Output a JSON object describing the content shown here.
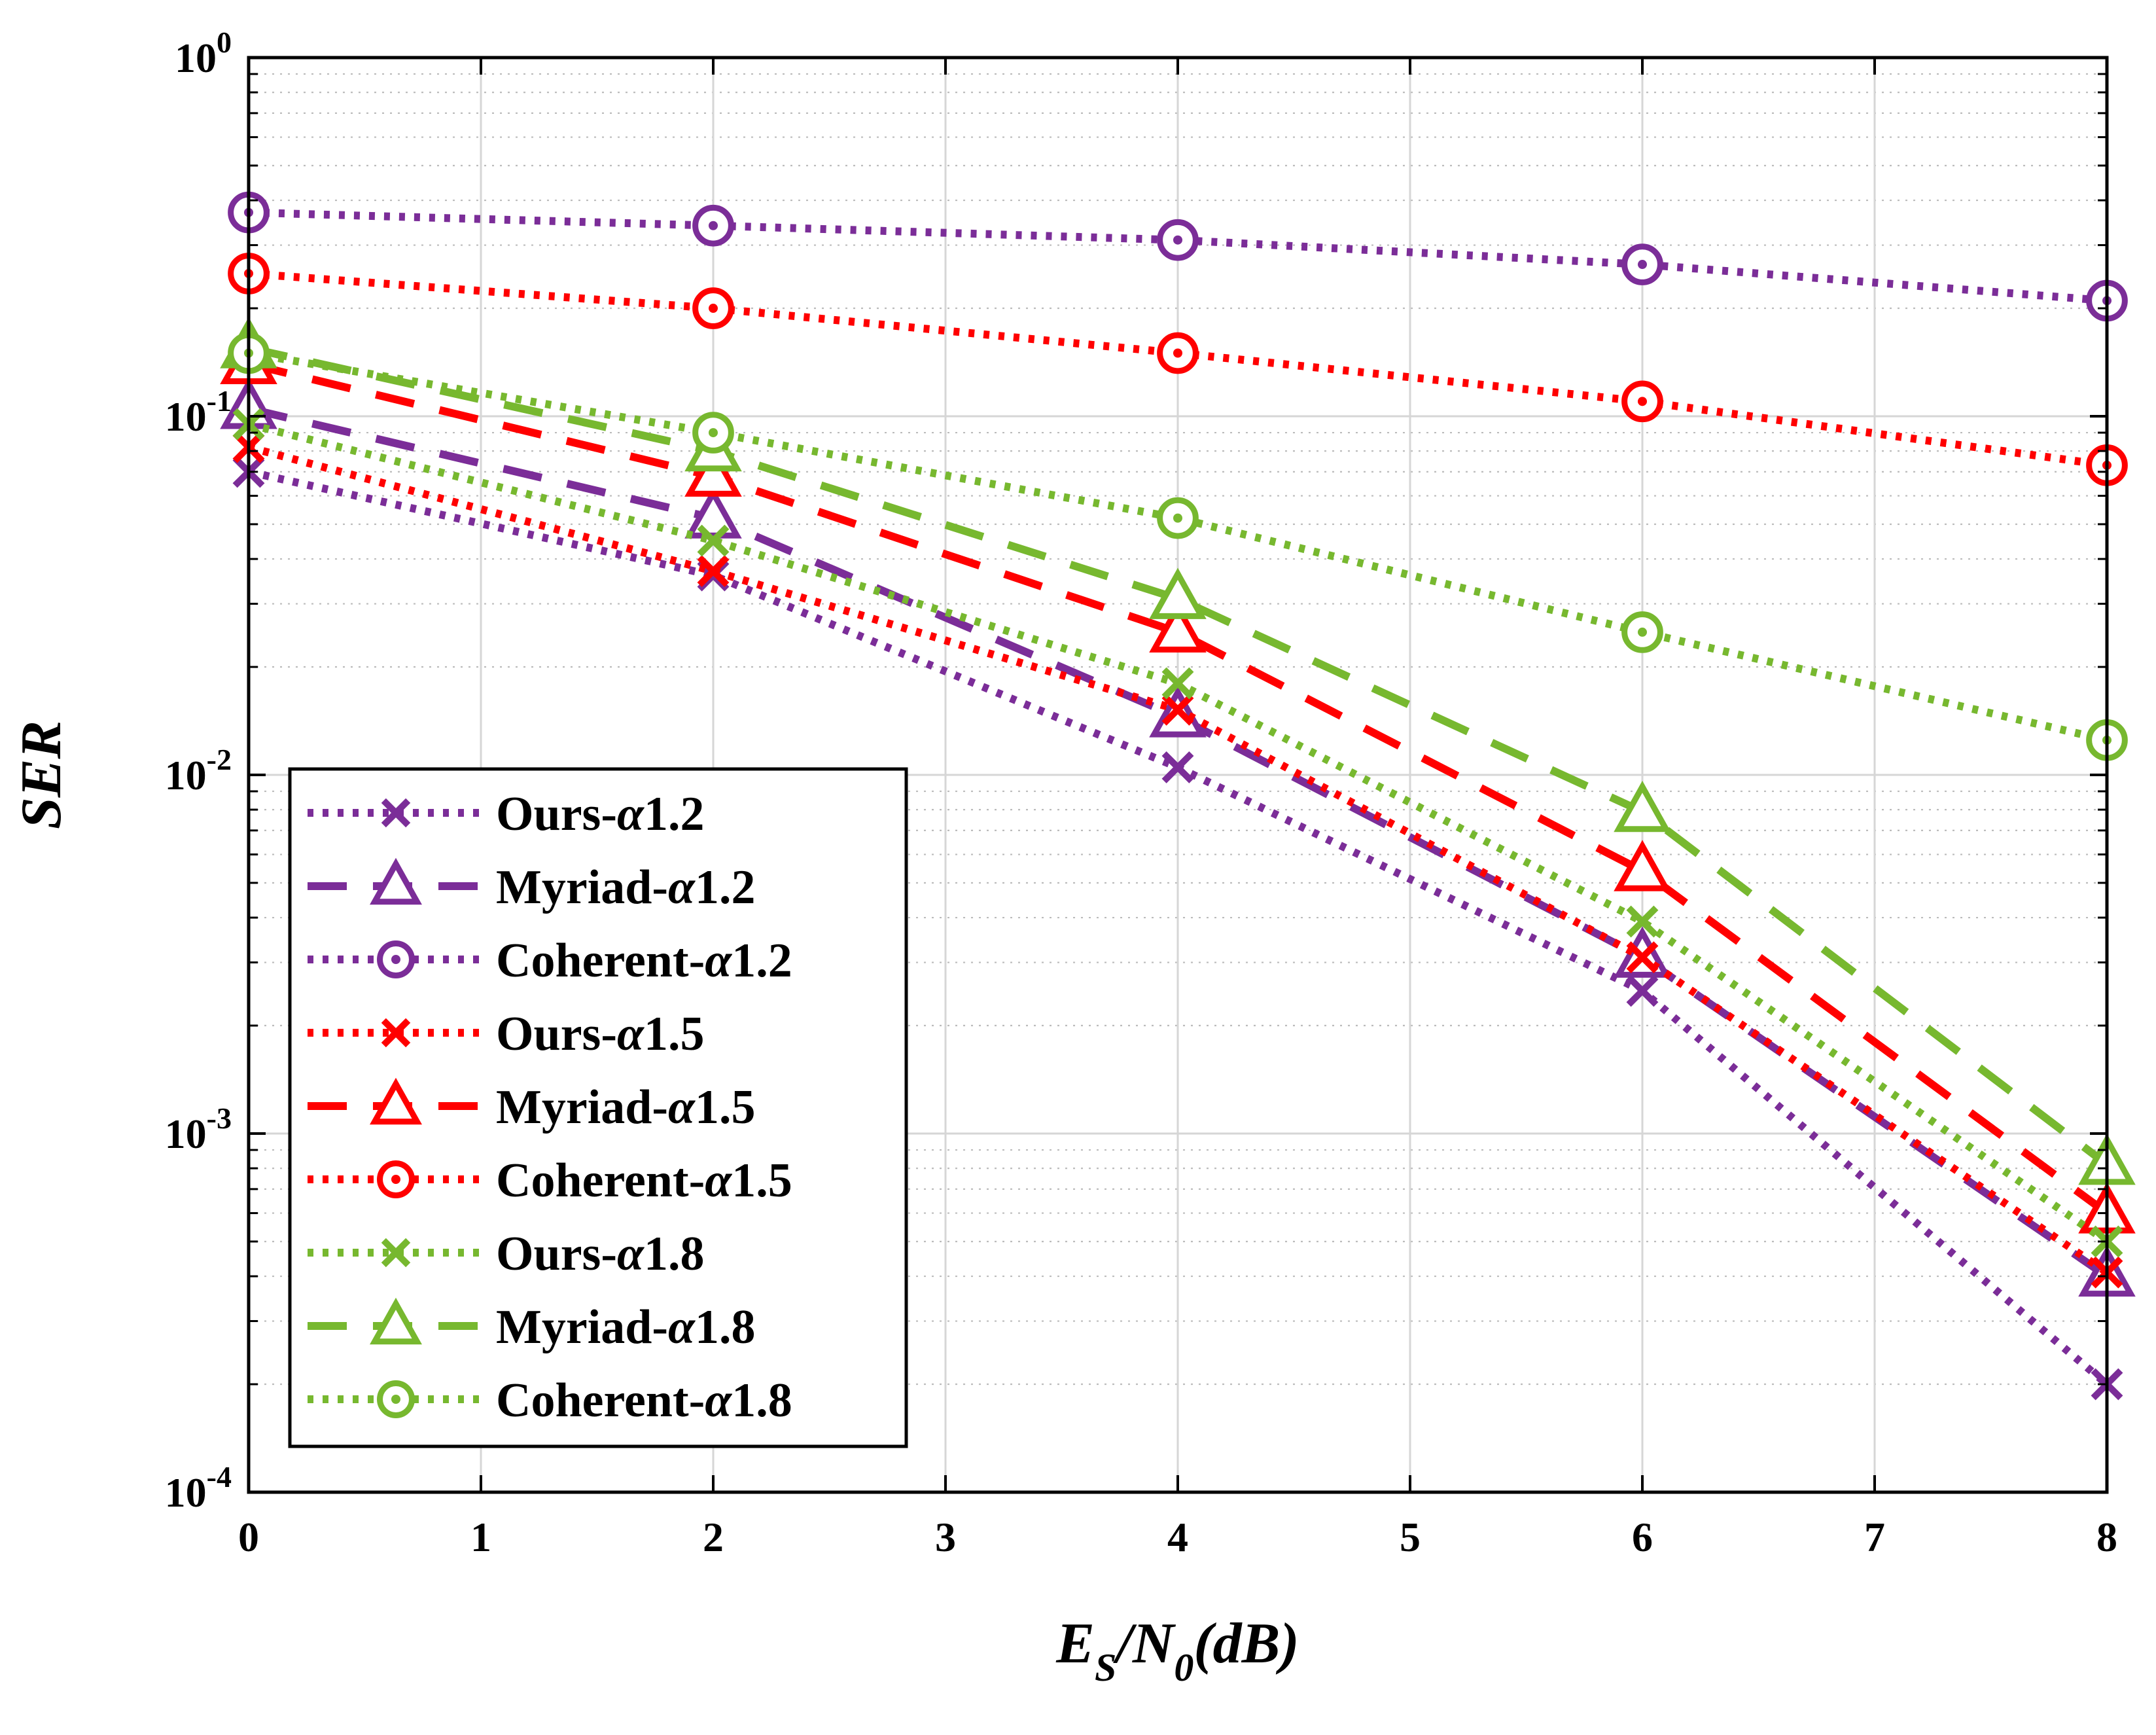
{
  "chart_data": {
    "type": "line",
    "title": "",
    "xlabel": {
      "E": "E",
      "E_sub": "S",
      "sep": "/N",
      "N_sub": "0",
      "unit": "(dB)"
    },
    "ylabel": "SER",
    "xlim": [
      0,
      8
    ],
    "ylim_log10": [
      -4,
      0
    ],
    "yscale": "log",
    "grid": true,
    "minor_grid": true,
    "x_ticks": [
      0,
      1,
      2,
      3,
      4,
      5,
      6,
      7,
      8
    ],
    "x_tick_labels": [
      "0",
      "1",
      "2",
      "3",
      "4",
      "5",
      "6",
      "7",
      "8"
    ],
    "y_ticks": [
      {
        "value": 0.0001,
        "base": "10",
        "exp": "-4"
      },
      {
        "value": 0.001,
        "base": "10",
        "exp": "-3"
      },
      {
        "value": 0.01,
        "base": "10",
        "exp": "-2"
      },
      {
        "value": 0.1,
        "base": "10",
        "exp": "-1"
      },
      {
        "value": 1,
        "base": "10",
        "exp": "0"
      }
    ],
    "legend_position": "bottom-left",
    "x": [
      0,
      2,
      4,
      6,
      8
    ],
    "series": [
      {
        "name_prefix": "Ours-",
        "alpha": "α",
        "param": "1.2",
        "color": "#7b2d98",
        "dash": "dotted",
        "marker": "x",
        "values": [
          0.07,
          0.036,
          0.0105,
          0.0025,
          0.0002
        ]
      },
      {
        "name_prefix": "Myriad-",
        "alpha": "α",
        "param": "1.2",
        "color": "#7b2d98",
        "dash": "dashed",
        "marker": "triangle",
        "values": [
          0.105,
          0.052,
          0.0145,
          0.0031,
          0.0004
        ]
      },
      {
        "name_prefix": "Coherent-",
        "alpha": "α",
        "param": "1.2",
        "color": "#7b2d98",
        "dash": "dotted",
        "marker": "circle",
        "values": [
          0.37,
          0.34,
          0.31,
          0.265,
          0.21
        ]
      },
      {
        "name_prefix": "Ours-",
        "alpha": "α",
        "param": "1.5",
        "color": "#ff0000",
        "dash": "dotted",
        "marker": "x",
        "values": [
          0.082,
          0.037,
          0.0152,
          0.0031,
          0.00041
        ]
      },
      {
        "name_prefix": "Myriad-",
        "alpha": "α",
        "param": "1.5",
        "color": "#ff0000",
        "dash": "dashed",
        "marker": "triangle",
        "values": [
          0.14,
          0.068,
          0.025,
          0.0054,
          0.0006
        ]
      },
      {
        "name_prefix": "Coherent-",
        "alpha": "α",
        "param": "1.5",
        "color": "#ff0000",
        "dash": "dotted",
        "marker": "circle",
        "values": [
          0.25,
          0.2,
          0.15,
          0.11,
          0.073
        ]
      },
      {
        "name_prefix": "Ours-",
        "alpha": "α",
        "param": "1.8",
        "color": "#77b82f",
        "dash": "dotted",
        "marker": "x",
        "values": [
          0.095,
          0.045,
          0.018,
          0.0039,
          0.0005
        ]
      },
      {
        "name_prefix": "Myriad-",
        "alpha": "α",
        "param": "1.8",
        "color": "#77b82f",
        "dash": "dashed",
        "marker": "triangle",
        "values": [
          0.155,
          0.08,
          0.031,
          0.0079,
          0.00082
        ]
      },
      {
        "name_prefix": "Coherent-",
        "alpha": "α",
        "param": "1.8",
        "color": "#77b82f",
        "dash": "dotted",
        "marker": "circle",
        "values": [
          0.15,
          0.09,
          0.052,
          0.025,
          0.0125
        ]
      }
    ]
  }
}
